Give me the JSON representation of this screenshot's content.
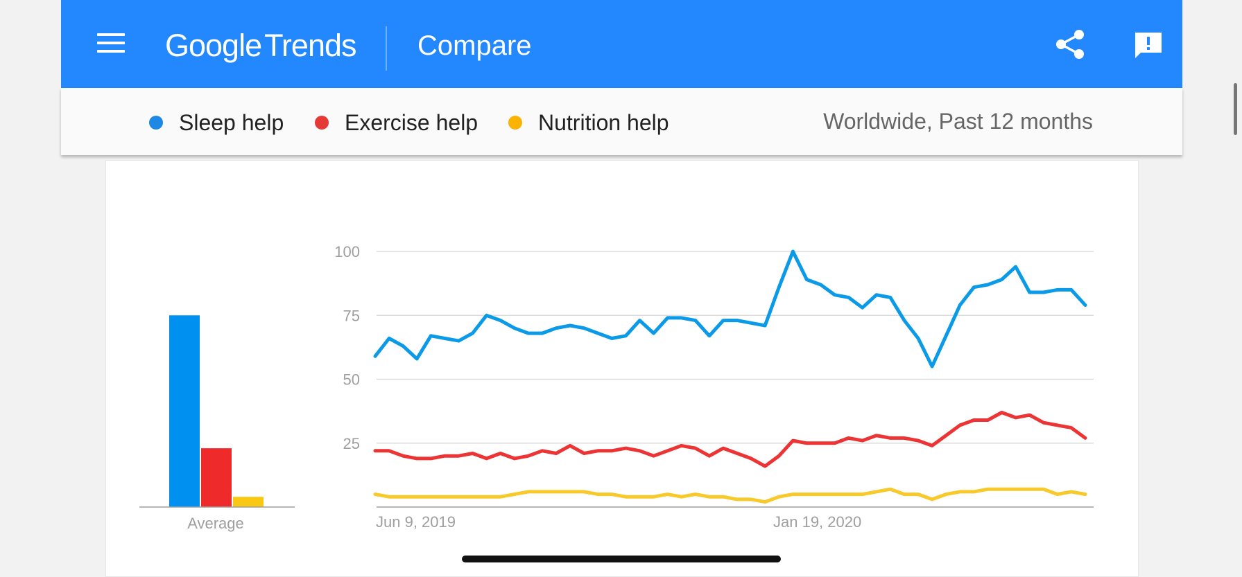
{
  "header": {
    "logo_google": "Google",
    "logo_trends": "Trends",
    "title": "Compare",
    "icons": [
      "menu-icon",
      "share-icon",
      "feedback-icon"
    ],
    "background": "#2387fd"
  },
  "legend": {
    "items": [
      {
        "label": "Sleep help",
        "color": "#1e88e5"
      },
      {
        "label": "Exercise help",
        "color": "#e53935"
      },
      {
        "label": "Nutrition help",
        "color": "#f9b300"
      }
    ],
    "scope": "Worldwide, Past 12 months"
  },
  "chart_data": [
    {
      "type": "bar",
      "categories": [
        "Sleep help",
        "Exercise help",
        "Nutrition help"
      ],
      "values": [
        75,
        23,
        4
      ],
      "colors": [
        "#0090f0",
        "#ef2a2a",
        "#f9c813"
      ],
      "xlabel": "Average",
      "ylim": [
        0,
        100
      ]
    },
    {
      "type": "line",
      "x_tick_labels": [
        "Jun 9, 2019",
        "Jan 19, 2020"
      ],
      "y_ticks": [
        25,
        50,
        75,
        100
      ],
      "ylim": [
        0,
        100
      ],
      "grid": true,
      "series": [
        {
          "name": "Sleep help",
          "color": "#0a9ae8",
          "values": [
            59,
            66,
            63,
            58,
            67,
            66,
            65,
            68,
            75,
            73,
            70,
            68,
            68,
            70,
            71,
            70,
            68,
            66,
            67,
            73,
            68,
            74,
            74,
            73,
            67,
            73,
            73,
            72,
            71,
            86,
            100,
            89,
            87,
            83,
            82,
            78,
            83,
            82,
            73,
            66,
            55,
            67,
            79,
            86,
            87,
            89,
            94,
            84,
            84,
            85,
            85,
            79
          ]
        },
        {
          "name": "Exercise help",
          "color": "#ed3434",
          "values": [
            22,
            22,
            20,
            19,
            19,
            20,
            20,
            21,
            19,
            21,
            19,
            20,
            22,
            21,
            24,
            21,
            22,
            22,
            23,
            22,
            20,
            22,
            24,
            23,
            20,
            23,
            21,
            19,
            16,
            20,
            26,
            25,
            25,
            25,
            27,
            26,
            28,
            27,
            27,
            26,
            24,
            28,
            32,
            34,
            34,
            37,
            35,
            36,
            33,
            32,
            31,
            27
          ]
        },
        {
          "name": "Nutrition help",
          "color": "#f8c92a",
          "values": [
            5,
            4,
            4,
            4,
            4,
            4,
            4,
            4,
            4,
            4,
            5,
            6,
            6,
            6,
            6,
            6,
            5,
            5,
            4,
            4,
            4,
            5,
            4,
            5,
            4,
            4,
            3,
            3,
            2,
            4,
            5,
            5,
            5,
            5,
            5,
            5,
            6,
            7,
            5,
            5,
            3,
            5,
            6,
            6,
            7,
            7,
            7,
            7,
            7,
            5,
            6,
            5
          ]
        }
      ]
    }
  ]
}
